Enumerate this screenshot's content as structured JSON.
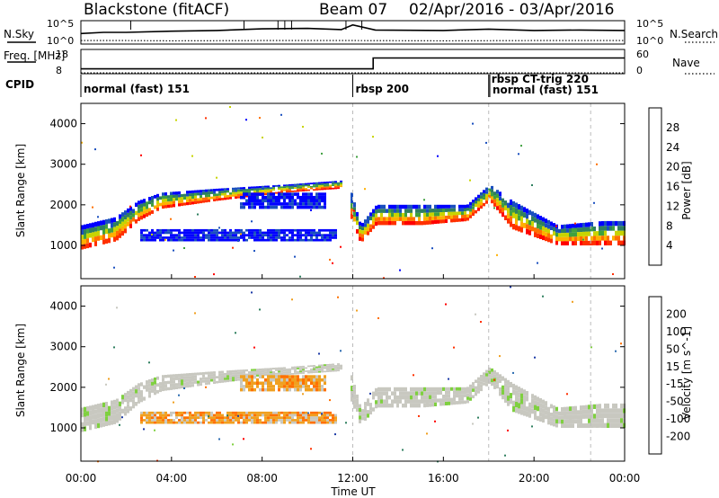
{
  "header": {
    "site": "Blackstone (fitACF)",
    "beam": "Beam 07",
    "date_range": "02/Apr/2016 - 03/Apr/2016"
  },
  "colors": {
    "power_scale": [
      "#0000ff",
      "#1a4fbf",
      "#2f7f5f",
      "#3fa03f",
      "#c8d400",
      "#ffb000",
      "#ff7000",
      "#ff3000",
      "#ff0000"
    ],
    "velocity_scale": [
      "#1c3aa6",
      "#2b6bb0",
      "#2f7f5f",
      "#7fd040",
      "#c8c8c0",
      "#f0a020",
      "#ff7000",
      "#ff3000",
      "#ff0000"
    ],
    "ground_scatter": "#c8c8c0"
  },
  "chart_data": [
    {
      "type": "line",
      "title": "",
      "left_label": "N.Sky",
      "right_label": "N.Search",
      "y_ticks_left": [
        "10^5",
        "10^0"
      ],
      "y_ticks_right": [
        "10^5",
        "10^0"
      ],
      "x_range": [
        0,
        24
      ],
      "series": [
        {
          "name": "N.Sky",
          "style": "solid",
          "x": [
            0,
            1,
            2,
            4,
            6,
            8,
            10,
            11.5,
            12,
            13,
            16,
            18,
            20,
            22,
            24
          ],
          "y": [
            0.55,
            0.5,
            0.5,
            0.45,
            0.42,
            0.35,
            0.33,
            0.38,
            0.18,
            0.4,
            0.42,
            0.36,
            0.42,
            0.4,
            0.42
          ]
        },
        {
          "name": "N.Search",
          "style": "dotted",
          "x": [
            0,
            2,
            4,
            8,
            12,
            16,
            20,
            24
          ],
          "y": [
            0.85,
            0.85,
            0.86,
            0.85,
            0.85,
            0.86,
            0.85,
            0.85
          ]
        }
      ]
    },
    {
      "type": "line",
      "left_label": "Freq. [MHz]",
      "right_label": "Nave",
      "y_ticks_left": [
        "18",
        "8"
      ],
      "y_ticks_right": [
        "60",
        "0"
      ],
      "x_range": [
        0,
        24
      ],
      "series": [
        {
          "name": "Freq.",
          "style": "solid",
          "x": [
            0,
            12.9,
            12.9,
            24
          ],
          "y": [
            10,
            10,
            14.5,
            14.5
          ]
        },
        {
          "name": "Nave",
          "style": "dotted",
          "x": [
            0,
            24
          ],
          "y": [
            0,
            0
          ]
        }
      ]
    },
    {
      "type": "table",
      "label": "CPID",
      "segments": [
        {
          "start": 0,
          "end": 12,
          "text": "normal (fast) 151"
        },
        {
          "start": 12,
          "end": 18,
          "text": "rbsp 200"
        },
        {
          "start": 18,
          "end": 18.05,
          "text": "rbsp CT-trig 220"
        },
        {
          "start": 18.05,
          "end": 24,
          "text": "normal (fast) 151"
        }
      ]
    },
    {
      "type": "heatmap",
      "ylabel": "Slant Range [km]",
      "colorbar_label": "Power [dB]",
      "colorbar_ticks": [
        "4",
        "8",
        "12",
        "16",
        "20",
        "24",
        "28"
      ],
      "y_ticks": [
        "1000",
        "2000",
        "3000",
        "4000"
      ],
      "ylim": [
        180,
        4500
      ],
      "x_range": [
        0,
        24
      ],
      "bands": [
        {
          "x": [
            0,
            1.5,
            2.5,
            3.5,
            6,
            9,
            11.5
          ],
          "y_low": [
            900,
            1100,
            1600,
            1900,
            2100,
            2300,
            2400
          ],
          "y_high": [
            1500,
            1700,
            2100,
            2300,
            2400,
            2500,
            2600
          ],
          "level": "mixed"
        },
        {
          "x": [
            11.8,
            12.3,
            13,
            15,
            17,
            18,
            19,
            21,
            23,
            24
          ],
          "y_low": [
            1800,
            1050,
            1500,
            1500,
            1600,
            2100,
            1400,
            1000,
            1000,
            1000
          ],
          "y_high": [
            2500,
            1500,
            2000,
            2000,
            2000,
            2500,
            2100,
            1500,
            1600,
            1600
          ],
          "level": "mixed"
        },
        {
          "x": [
            2.5,
            11.2
          ],
          "y_low": [
            1100,
            1100
          ],
          "y_high": [
            1400,
            1400
          ],
          "level": "low"
        },
        {
          "x": [
            7,
            10.8
          ],
          "y_low": [
            1900,
            1900
          ],
          "y_high": [
            2300,
            2300
          ],
          "level": "low"
        }
      ]
    },
    {
      "type": "heatmap",
      "ylabel": "Slant Range [km]",
      "colorbar_label": "Velocity [m s^-1]",
      "colorbar_ticks": [
        "200",
        "100",
        "50",
        "15",
        "-15",
        "-50",
        "-100",
        "-200"
      ],
      "y_ticks": [
        "1000",
        "2000",
        "3000",
        "4000"
      ],
      "ylim": [
        180,
        4500
      ],
      "x_range": [
        0,
        24
      ],
      "x_ticks": [
        "00:00",
        "04:00",
        "08:00",
        "12:00",
        "16:00",
        "20:00",
        "00:00"
      ],
      "xlabel": "Time UT"
    }
  ]
}
